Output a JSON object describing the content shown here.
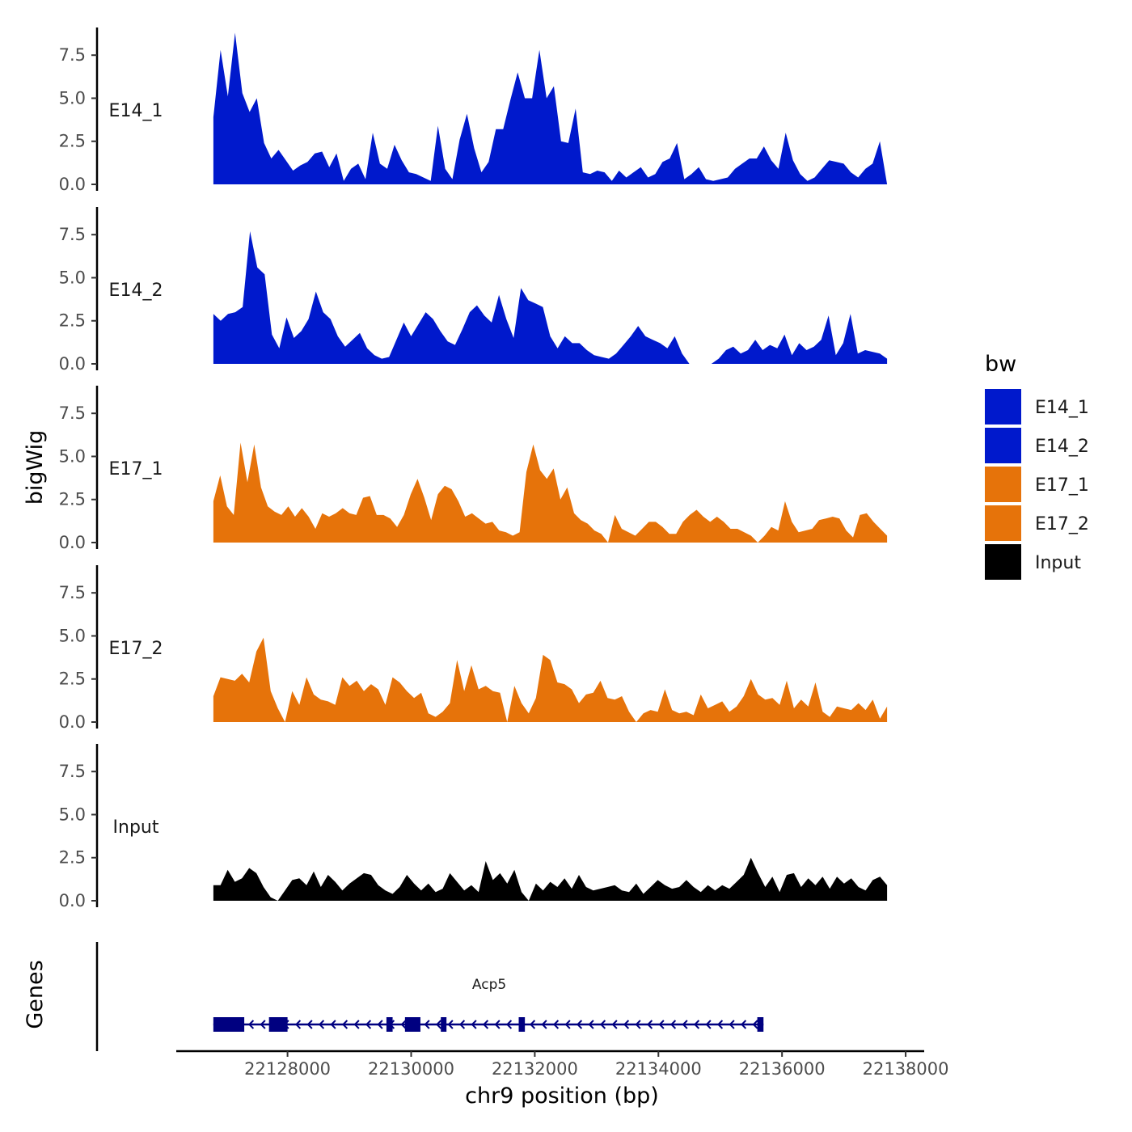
{
  "chart_data": {
    "type": "area",
    "chromosome": "chr9",
    "xlabel": "chr9 position (bp)",
    "ylabel": "bigWig",
    "genes_label": "Genes",
    "xlim": [
      22126200,
      22138300
    ],
    "x_ticks": [
      22128000,
      22130000,
      22132000,
      22134000,
      22136000,
      22138000
    ],
    "x_tick_labels": [
      "22128000",
      "22130000",
      "22132000",
      "22134000",
      "22136000",
      "22138000"
    ],
    "ylim": [
      0,
      9.2
    ],
    "y_ticks": [
      0.0,
      2.5,
      5.0,
      7.5
    ],
    "y_tick_labels": [
      "0.0",
      "2.5",
      "5.0",
      "7.5"
    ],
    "data_range": [
      22126800,
      22137700
    ],
    "legend": {
      "title": "bw",
      "items": [
        {
          "label": "E14_1",
          "color": "#0019CC"
        },
        {
          "label": "E14_2",
          "color": "#0019CC"
        },
        {
          "label": "E17_1",
          "color": "#E6730A"
        },
        {
          "label": "E17_2",
          "color": "#E6730A"
        },
        {
          "label": "Input",
          "color": "#000000"
        }
      ]
    },
    "series": [
      {
        "name": "E14_1",
        "color": "#0019CC",
        "values": [
          3.9,
          7.8,
          5.1,
          8.8,
          5.3,
          4.2,
          5.0,
          2.4,
          1.5,
          2.0,
          1.4,
          0.8,
          1.1,
          1.3,
          1.8,
          1.9,
          1.0,
          1.8,
          0.2,
          0.9,
          1.2,
          0.3,
          3.0,
          1.2,
          0.9,
          2.3,
          1.4,
          0.7,
          0.6,
          0.4,
          0.2,
          3.4,
          0.9,
          0.3,
          2.6,
          4.1,
          2.1,
          0.7,
          1.3,
          3.2,
          3.2,
          4.9,
          6.5,
          5.0,
          5.0,
          7.8,
          5.0,
          5.7,
          2.5,
          2.4,
          4.4,
          0.7,
          0.6,
          0.8,
          0.7,
          0.2,
          0.8,
          0.4,
          0.7,
          1.0,
          0.4,
          0.6,
          1.3,
          1.5,
          2.4,
          0.3,
          0.6,
          1.0,
          0.3,
          0.2,
          0.3,
          0.4,
          0.9,
          1.2,
          1.5,
          1.5,
          2.2,
          1.4,
          0.9,
          3.0,
          1.4,
          0.6,
          0.2,
          0.4,
          0.9,
          1.4,
          1.3,
          1.2,
          0.7,
          0.4,
          0.9,
          1.2,
          2.5,
          0.0
        ]
      },
      {
        "name": "E14_2",
        "color": "#0019CC",
        "values": [
          2.9,
          2.5,
          2.9,
          3.0,
          3.3,
          7.7,
          5.6,
          5.2,
          1.7,
          0.9,
          2.7,
          1.5,
          1.9,
          2.6,
          4.2,
          3.0,
          2.6,
          1.6,
          1.0,
          1.4,
          1.8,
          0.9,
          0.5,
          0.3,
          0.4,
          1.4,
          2.4,
          1.6,
          2.3,
          3.0,
          2.6,
          1.9,
          1.3,
          1.1,
          2.0,
          3.0,
          3.4,
          2.8,
          2.4,
          4.0,
          2.6,
          1.5,
          4.4,
          3.7,
          3.5,
          3.3,
          1.6,
          0.9,
          1.6,
          1.2,
          1.2,
          0.8,
          0.5,
          0.4,
          0.3,
          0.6,
          1.1,
          1.6,
          2.2,
          1.6,
          1.4,
          1.2,
          0.9,
          1.6,
          0.6,
          0.0,
          0.0,
          0.0,
          0.0,
          0.3,
          0.8,
          1.0,
          0.6,
          0.8,
          1.4,
          0.8,
          1.1,
          0.9,
          1.7,
          0.5,
          1.2,
          0.8,
          1.0,
          1.4,
          2.8,
          0.5,
          1.2,
          2.9,
          0.6,
          0.8,
          0.7,
          0.6,
          0.3
        ]
      },
      {
        "name": "E17_1",
        "color": "#E6730A",
        "values": [
          2.4,
          3.9,
          2.1,
          1.6,
          5.8,
          3.5,
          5.7,
          3.2,
          2.1,
          1.8,
          1.6,
          2.1,
          1.5,
          2.0,
          1.5,
          0.8,
          1.7,
          1.5,
          1.7,
          2.0,
          1.7,
          1.6,
          2.6,
          2.7,
          1.6,
          1.6,
          1.4,
          0.9,
          1.6,
          2.8,
          3.7,
          2.6,
          1.3,
          2.8,
          3.3,
          3.1,
          2.4,
          1.5,
          1.7,
          1.4,
          1.1,
          1.2,
          0.7,
          0.6,
          0.4,
          0.6,
          4.1,
          5.7,
          4.2,
          3.7,
          4.3,
          2.5,
          3.2,
          1.7,
          1.3,
          1.1,
          0.7,
          0.5,
          0.0,
          1.6,
          0.8,
          0.6,
          0.4,
          0.8,
          1.2,
          1.2,
          0.9,
          0.5,
          0.5,
          1.2,
          1.6,
          1.9,
          1.5,
          1.2,
          1.5,
          1.2,
          0.8,
          0.8,
          0.6,
          0.4,
          0.0,
          0.4,
          0.9,
          0.7,
          2.4,
          1.2,
          0.6,
          0.7,
          0.8,
          1.3,
          1.4,
          1.5,
          1.4,
          0.7,
          0.3,
          1.6,
          1.7,
          1.2,
          0.8,
          0.4
        ]
      },
      {
        "name": "E17_2",
        "color": "#E6730A",
        "values": [
          1.5,
          2.6,
          2.5,
          2.4,
          2.8,
          2.3,
          4.1,
          4.9,
          1.8,
          0.8,
          0.0,
          1.8,
          1.0,
          2.6,
          1.6,
          1.3,
          1.2,
          1.0,
          2.6,
          2.1,
          2.4,
          1.8,
          2.2,
          1.9,
          1.0,
          2.6,
          2.3,
          1.8,
          1.4,
          1.7,
          0.5,
          0.3,
          0.6,
          1.1,
          3.6,
          1.8,
          3.3,
          1.9,
          2.1,
          1.8,
          1.7,
          0.0,
          2.1,
          1.1,
          0.5,
          1.4,
          3.9,
          3.6,
          2.3,
          2.2,
          1.9,
          1.1,
          1.6,
          1.7,
          2.4,
          1.4,
          1.3,
          1.5,
          0.6,
          0.0,
          0.5,
          0.7,
          0.6,
          1.9,
          0.7,
          0.5,
          0.6,
          0.4,
          1.6,
          0.8,
          1.0,
          1.2,
          0.6,
          0.9,
          1.5,
          2.5,
          1.6,
          1.3,
          1.4,
          1.0,
          2.4,
          0.8,
          1.3,
          0.9,
          2.3,
          0.6,
          0.3,
          0.9,
          0.8,
          0.7,
          1.1,
          0.7,
          1.3,
          0.2,
          0.9
        ]
      },
      {
        "name": "Input",
        "color": "#000000",
        "values": [
          0.9,
          0.9,
          1.8,
          1.1,
          1.3,
          1.9,
          1.6,
          0.8,
          0.2,
          0.0,
          0.6,
          1.2,
          1.3,
          0.9,
          1.7,
          0.8,
          1.5,
          1.1,
          0.6,
          1.0,
          1.3,
          1.6,
          1.5,
          0.9,
          0.6,
          0.4,
          0.8,
          1.5,
          1.0,
          0.6,
          1.0,
          0.5,
          0.7,
          1.6,
          1.1,
          0.6,
          0.9,
          0.5,
          2.3,
          1.2,
          1.6,
          1.0,
          1.8,
          0.5,
          0.0,
          1.0,
          0.6,
          1.1,
          0.8,
          1.3,
          0.7,
          1.5,
          0.8,
          0.6,
          0.7,
          0.8,
          0.9,
          0.6,
          0.5,
          1.0,
          0.4,
          0.8,
          1.2,
          0.9,
          0.7,
          0.8,
          1.2,
          0.8,
          0.5,
          0.9,
          0.6,
          0.9,
          0.7,
          1.1,
          1.5,
          2.5,
          1.6,
          0.8,
          1.4,
          0.5,
          1.5,
          1.6,
          0.8,
          1.3,
          0.9,
          1.4,
          0.7,
          1.4,
          1.0,
          1.3,
          0.8,
          0.6,
          1.2,
          1.4,
          0.9
        ]
      }
    ],
    "gene": {
      "name": "Acp5",
      "strand": "-",
      "start": 22126800,
      "end": 22135700,
      "exons": [
        [
          22126800,
          22127300
        ],
        [
          22127700,
          22128000
        ],
        [
          22129600,
          22129700
        ],
        [
          22129900,
          22130150
        ],
        [
          22130480,
          22130560
        ],
        [
          22131740,
          22131840
        ],
        [
          22135600,
          22135700
        ]
      ]
    }
  }
}
